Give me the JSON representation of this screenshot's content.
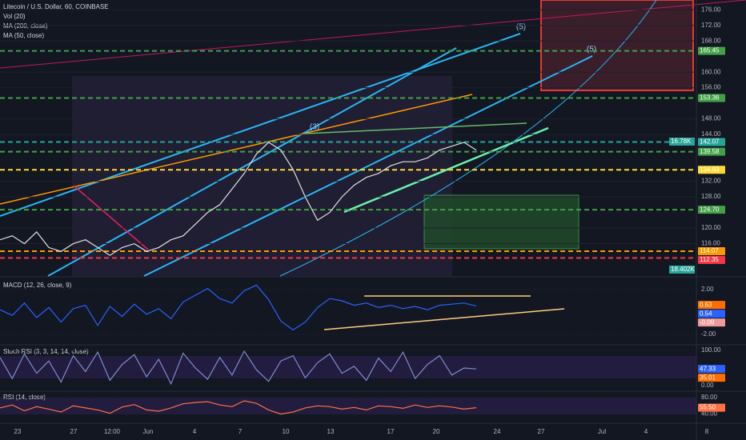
{
  "chart_data": [
    {
      "type": "line",
      "title": "Litecoin / U.S. Dollar, 60, COINBASE",
      "indicators": [
        "Vol (20)",
        "MA (200, close)",
        "MA (50, close)"
      ],
      "annotations": [
        "(5)",
        "(5)",
        "(3)"
      ],
      "x_labels": [
        "23",
        "27",
        "12:00",
        "Jun",
        "4",
        "7",
        "10",
        "13",
        "17",
        "20",
        "24",
        "27",
        "Jul",
        "4",
        "8"
      ],
      "values": [
        117,
        118,
        116,
        119,
        115,
        114,
        116,
        117,
        115,
        113,
        115,
        116,
        114,
        115,
        117,
        118,
        121,
        124,
        126,
        130,
        134,
        139,
        142,
        140,
        135,
        128,
        122,
        124,
        128,
        131,
        133,
        134,
        136,
        137,
        137,
        138,
        140,
        141,
        142,
        140
      ],
      "color": "#e0e0e0",
      "ylim": [
        107.7,
        178.5
      ],
      "yticks": [
        {
          "value": 176,
          "label": "176.00"
        },
        {
          "value": 172,
          "label": "172.00"
        },
        {
          "value": 168,
          "label": "168.00"
        },
        {
          "value": 160,
          "label": "160.00"
        },
        {
          "value": 156,
          "label": "156.00"
        },
        {
          "value": 148,
          "label": "148.00"
        },
        {
          "value": 144,
          "label": "144.00"
        },
        {
          "value": 132,
          "label": "132.00"
        },
        {
          "value": 128,
          "label": "128.00"
        },
        {
          "value": 120,
          "label": "120.00"
        },
        {
          "value": 116,
          "label": "116.00"
        }
      ],
      "levels": [
        {
          "value": 165.45,
          "label": "165.45",
          "color": "#43a047"
        },
        {
          "value": 153.36,
          "label": "153.36",
          "color": "#43a047"
        },
        {
          "value": 142.07,
          "label": "142.07",
          "color": "#26a69a"
        },
        {
          "value": 139.58,
          "label": "139.58",
          "color": "#43a047"
        },
        {
          "value": 134.93,
          "label": "134.93",
          "color": "#fdd835"
        },
        {
          "value": 124.7,
          "label": "124.70",
          "color": "#43a047"
        },
        {
          "value": 114.07,
          "label": "114.07",
          "color": "#ff9800"
        },
        {
          "value": 112.35,
          "label": "112.35",
          "color": "#f23645"
        }
      ],
      "volume_labels": [
        {
          "value": 16780,
          "label": "16.78K"
        },
        {
          "value": 18402,
          "label": "18.402K"
        }
      ]
    },
    {
      "type": "line",
      "title": "MACD (12, 26, close, 9)",
      "values": [
        0.2,
        -0.3,
        0.8,
        -0.5,
        0.4,
        -0.9,
        0.3,
        0.6,
        -1.2,
        0.5,
        -0.4,
        0.7,
        -0.2,
        0.3,
        -0.6,
        0.9,
        1.5,
        2.1,
        1.2,
        0.8,
        1.9,
        2.4,
        1.1,
        -0.8,
        -1.6,
        -0.9,
        0.4,
        1.2,
        1.0,
        0.6,
        0.8,
        0.4,
        0.6,
        0.3,
        0.5,
        0.2,
        0.6,
        0.7,
        0.8,
        0.54
      ],
      "color": "#2962ff",
      "ylim": [
        -2.86,
        3.0
      ],
      "yticks": [
        {
          "value": 2,
          "label": "2.00"
        },
        {
          "value": -2,
          "label": "-2.00"
        }
      ],
      "levels": [
        {
          "value": 0.63,
          "label": "0.63",
          "color": "#ff6d00"
        },
        {
          "value": 0.54,
          "label": "0.54",
          "color": "#2962ff"
        },
        {
          "value": -0.09,
          "label": "-0.09",
          "color": "#ef9a9a"
        }
      ]
    },
    {
      "type": "line",
      "title": "Stoch RSI (3, 3, 14, 14, close)",
      "values": [
        80,
        20,
        90,
        35,
        70,
        10,
        85,
        40,
        95,
        15,
        60,
        88,
        25,
        75,
        5,
        92,
        50,
        18,
        80,
        30,
        98,
        45,
        12,
        70,
        85,
        22,
        65,
        90,
        35,
        55,
        15,
        78,
        40,
        95,
        20,
        60,
        85,
        30,
        50,
        47.33
      ],
      "color": "#7e8ccf",
      "ylim": [
        -13.6,
        113.6
      ],
      "yticks": [
        {
          "value": 100,
          "label": "100.00"
        },
        {
          "value": 0,
          "label": "0.00"
        }
      ],
      "levels": [
        {
          "value": 47.33,
          "label": "47.33",
          "color": "#2962ff"
        },
        {
          "value": 35.01,
          "label": "35.01",
          "color": "#ff6d00"
        }
      ]
    },
    {
      "type": "line",
      "title": "RSI (14, close)",
      "values": [
        55,
        62,
        48,
        58,
        52,
        45,
        60,
        55,
        50,
        42,
        57,
        63,
        50,
        47,
        55,
        65,
        68,
        70,
        62,
        58,
        72,
        66,
        50,
        40,
        45,
        55,
        60,
        58,
        52,
        56,
        50,
        60,
        58,
        54,
        62,
        56,
        60,
        57,
        52,
        55.5
      ],
      "color": "#ff7043",
      "ylim": [
        20,
        93.3
      ],
      "yticks": [
        {
          "value": 80,
          "label": "80.00"
        },
        {
          "value": 40,
          "label": "40.00"
        }
      ],
      "levels": [
        {
          "value": 55.5,
          "label": "55.50",
          "color": "#ff7043"
        }
      ]
    }
  ]
}
